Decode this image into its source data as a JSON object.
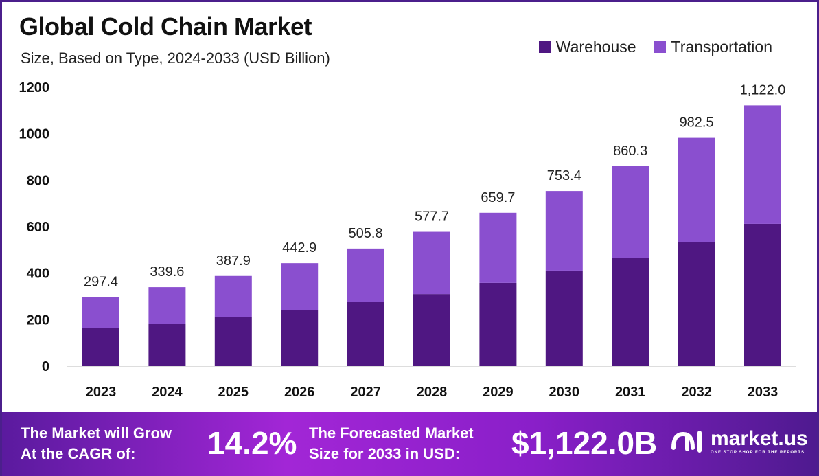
{
  "chart_data": {
    "type": "bar",
    "stacked": true,
    "title": "Global Cold Chain Market",
    "subtitle": "Size, Based on Type, 2024-2033 (USD Billion)",
    "categories": [
      "2023",
      "2024",
      "2025",
      "2026",
      "2027",
      "2028",
      "2029",
      "2030",
      "2031",
      "2032",
      "2033"
    ],
    "series": [
      {
        "name": "Warehouse",
        "color": "#4f1782",
        "values": [
          163,
          183,
          210,
          240,
          275,
          310,
          358,
          411,
          467,
          535,
          612
        ]
      },
      {
        "name": "Transportation",
        "color": "#8a4fcf",
        "values": [
          134.4,
          156.6,
          177.9,
          202.9,
          230.8,
          267.7,
          301.7,
          342.4,
          393.3,
          447.5,
          510.0
        ]
      }
    ],
    "totals": [
      297.4,
      339.6,
      387.9,
      442.9,
      505.8,
      577.7,
      659.7,
      753.4,
      860.3,
      982.5,
      1122.0
    ],
    "total_labels": [
      "297.4",
      "339.6",
      "387.9",
      "442.9",
      "505.8",
      "577.7",
      "659.7",
      "753.4",
      "860.3",
      "982.5",
      "1,122.0"
    ],
    "yticks": [
      "0",
      "200",
      "400",
      "600",
      "800",
      "1000",
      "1200"
    ],
    "ylim": [
      0,
      1200
    ],
    "grid": false,
    "legend": "top-right"
  },
  "footer": {
    "cagr_text_1": "The Market will Grow",
    "cagr_text_2": "At the CAGR of:",
    "cagr_value": "14.2%",
    "forecast_text_1": "The Forecasted Market",
    "forecast_text_2": "Size for 2033 in USD:",
    "forecast_value": "$1,122.0B",
    "brand": "market.us",
    "brand_tagline": "ONE STOP SHOP FOR THE REPORTS"
  }
}
